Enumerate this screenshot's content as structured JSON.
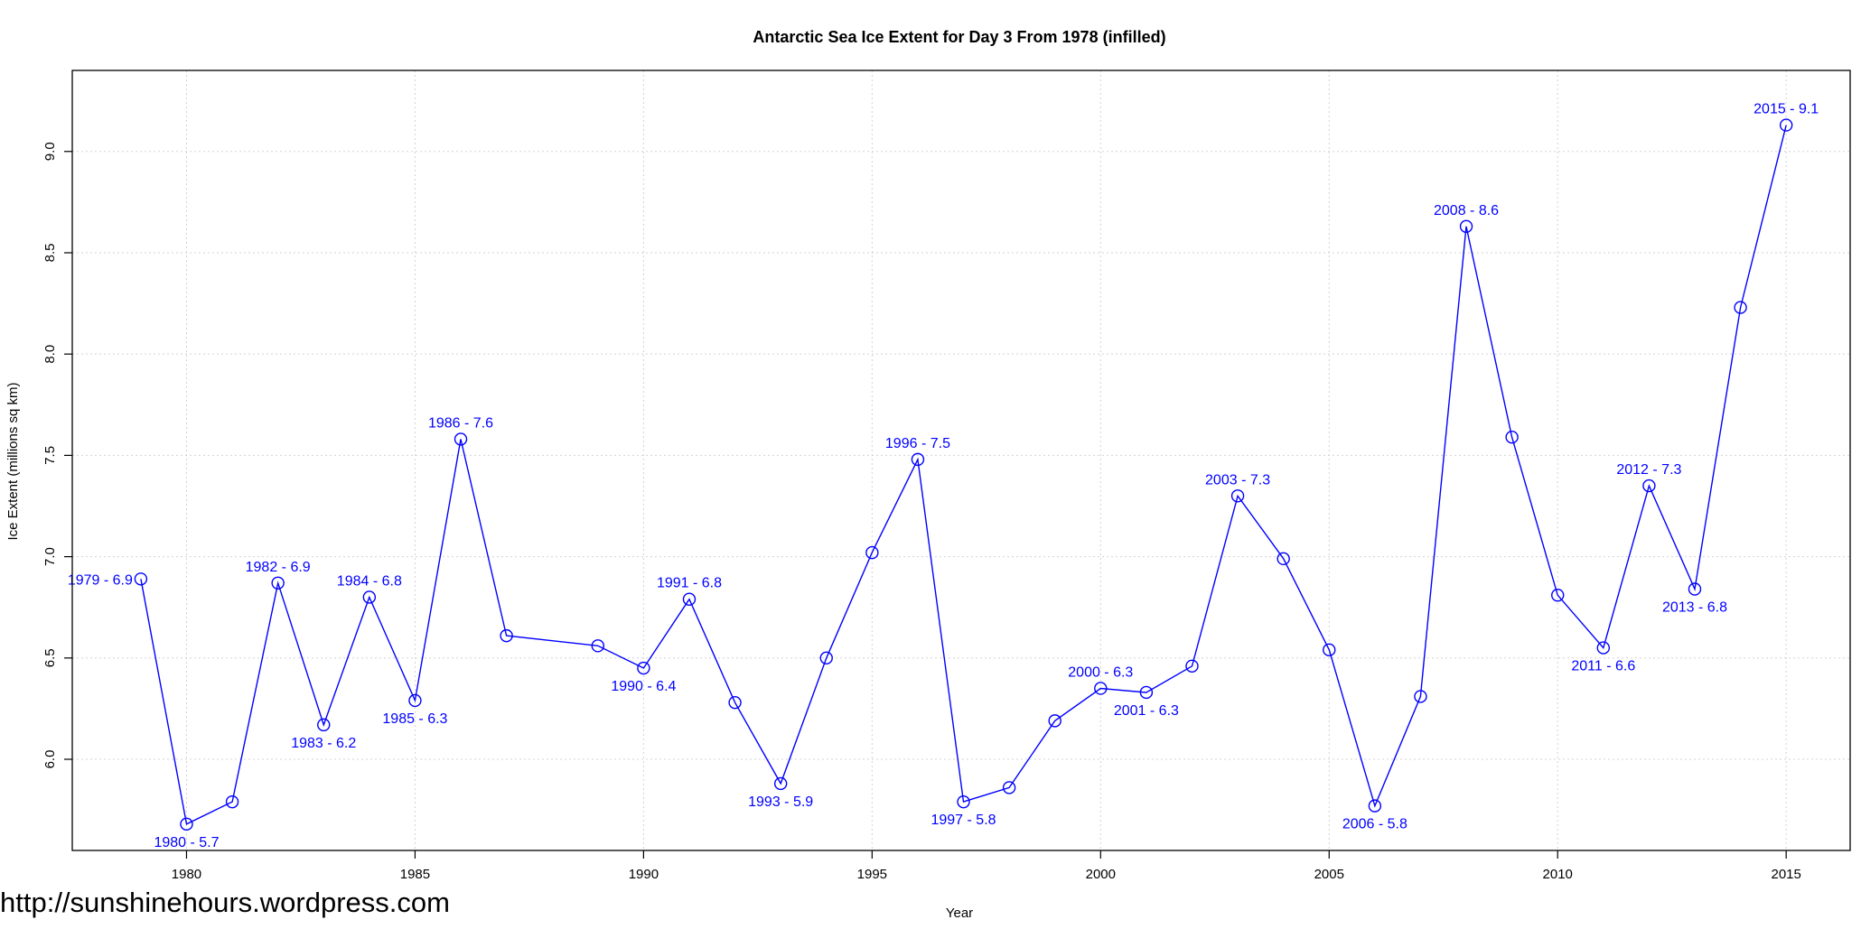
{
  "watermark": "http://sunshinehours.wordpress.com",
  "chart_data": {
    "type": "line",
    "title": "Antarctic Sea Ice Extent for Day 3 From 1978 (infilled)",
    "xlabel": "Year",
    "ylabel": "Ice Extent (millions sq km)",
    "xlim": [
      1977.5,
      2016.4
    ],
    "ylim": [
      5.55,
      9.4
    ],
    "x_ticks": [
      1980,
      1985,
      1990,
      1995,
      2000,
      2005,
      2010,
      2015
    ],
    "x_tick_labels": [
      "1980",
      "1985",
      "1990",
      "1995",
      "2000",
      "2005",
      "2010",
      "2015"
    ],
    "y_ticks": [
      6.0,
      6.5,
      7.0,
      7.5,
      8.0,
      8.5,
      9.0
    ],
    "y_tick_labels": [
      "6.0",
      "6.5",
      "7.0",
      "7.5",
      "8.0",
      "8.5",
      "9.0"
    ],
    "grid": true,
    "series_color": "#0000ff",
    "marker": "open-circle",
    "series": [
      {
        "x": [
          1979,
          1980,
          1981,
          1982,
          1983,
          1984,
          1985,
          1986,
          1987,
          1989,
          1990,
          1991,
          1992,
          1993,
          1994,
          1995,
          1996,
          1997,
          1998,
          1999,
          2000,
          2001,
          2002,
          2003,
          2004,
          2005,
          2006,
          2007,
          2008,
          2009,
          2010,
          2011,
          2012,
          2013,
          2014,
          2015
        ],
        "y": [
          6.89,
          5.68,
          5.79,
          6.87,
          6.17,
          6.8,
          6.29,
          7.58,
          6.61,
          6.56,
          6.45,
          6.79,
          6.28,
          5.88,
          6.5,
          7.02,
          7.48,
          5.79,
          5.86,
          6.19,
          6.35,
          6.33,
          6.46,
          7.3,
          6.99,
          6.54,
          5.77,
          6.31,
          8.63,
          7.59,
          6.81,
          6.55,
          7.35,
          6.84,
          8.23,
          9.13
        ]
      }
    ],
    "annotations": [
      {
        "x": 1979,
        "y": 6.89,
        "text": "1979 - 6.9",
        "pos": "left"
      },
      {
        "x": 1980,
        "y": 5.68,
        "text": "1980 - 5.7",
        "pos": "below"
      },
      {
        "x": 1982,
        "y": 6.87,
        "text": "1982 - 6.9",
        "pos": "above"
      },
      {
        "x": 1983,
        "y": 6.17,
        "text": "1983 - 6.2",
        "pos": "below"
      },
      {
        "x": 1984,
        "y": 6.8,
        "text": "1984 - 6.8",
        "pos": "above"
      },
      {
        "x": 1985,
        "y": 6.29,
        "text": "1985 - 6.3",
        "pos": "below"
      },
      {
        "x": 1986,
        "y": 7.58,
        "text": "1986 - 7.6",
        "pos": "above"
      },
      {
        "x": 1990,
        "y": 6.45,
        "text": "1990 - 6.4",
        "pos": "below"
      },
      {
        "x": 1991,
        "y": 6.79,
        "text": "1991 - 6.8",
        "pos": "above"
      },
      {
        "x": 1993,
        "y": 5.88,
        "text": "1993 - 5.9",
        "pos": "below"
      },
      {
        "x": 1996,
        "y": 7.48,
        "text": "1996 - 7.5",
        "pos": "above"
      },
      {
        "x": 1997,
        "y": 5.79,
        "text": "1997 - 5.8",
        "pos": "below"
      },
      {
        "x": 2000,
        "y": 6.35,
        "text": "2000 - 6.3",
        "pos": "above"
      },
      {
        "x": 2001,
        "y": 6.33,
        "text": "2001 - 6.3",
        "pos": "below"
      },
      {
        "x": 2003,
        "y": 7.3,
        "text": "2003 - 7.3",
        "pos": "above"
      },
      {
        "x": 2006,
        "y": 5.77,
        "text": "2006 - 5.8",
        "pos": "below"
      },
      {
        "x": 2008,
        "y": 8.63,
        "text": "2008 - 8.6",
        "pos": "above"
      },
      {
        "x": 2011,
        "y": 6.55,
        "text": "2011 - 6.6",
        "pos": "below"
      },
      {
        "x": 2012,
        "y": 7.35,
        "text": "2012 - 7.3",
        "pos": "above"
      },
      {
        "x": 2013,
        "y": 6.84,
        "text": "2013 - 6.8",
        "pos": "below"
      },
      {
        "x": 2015,
        "y": 9.13,
        "text": "2015 - 9.1",
        "pos": "above"
      }
    ]
  }
}
